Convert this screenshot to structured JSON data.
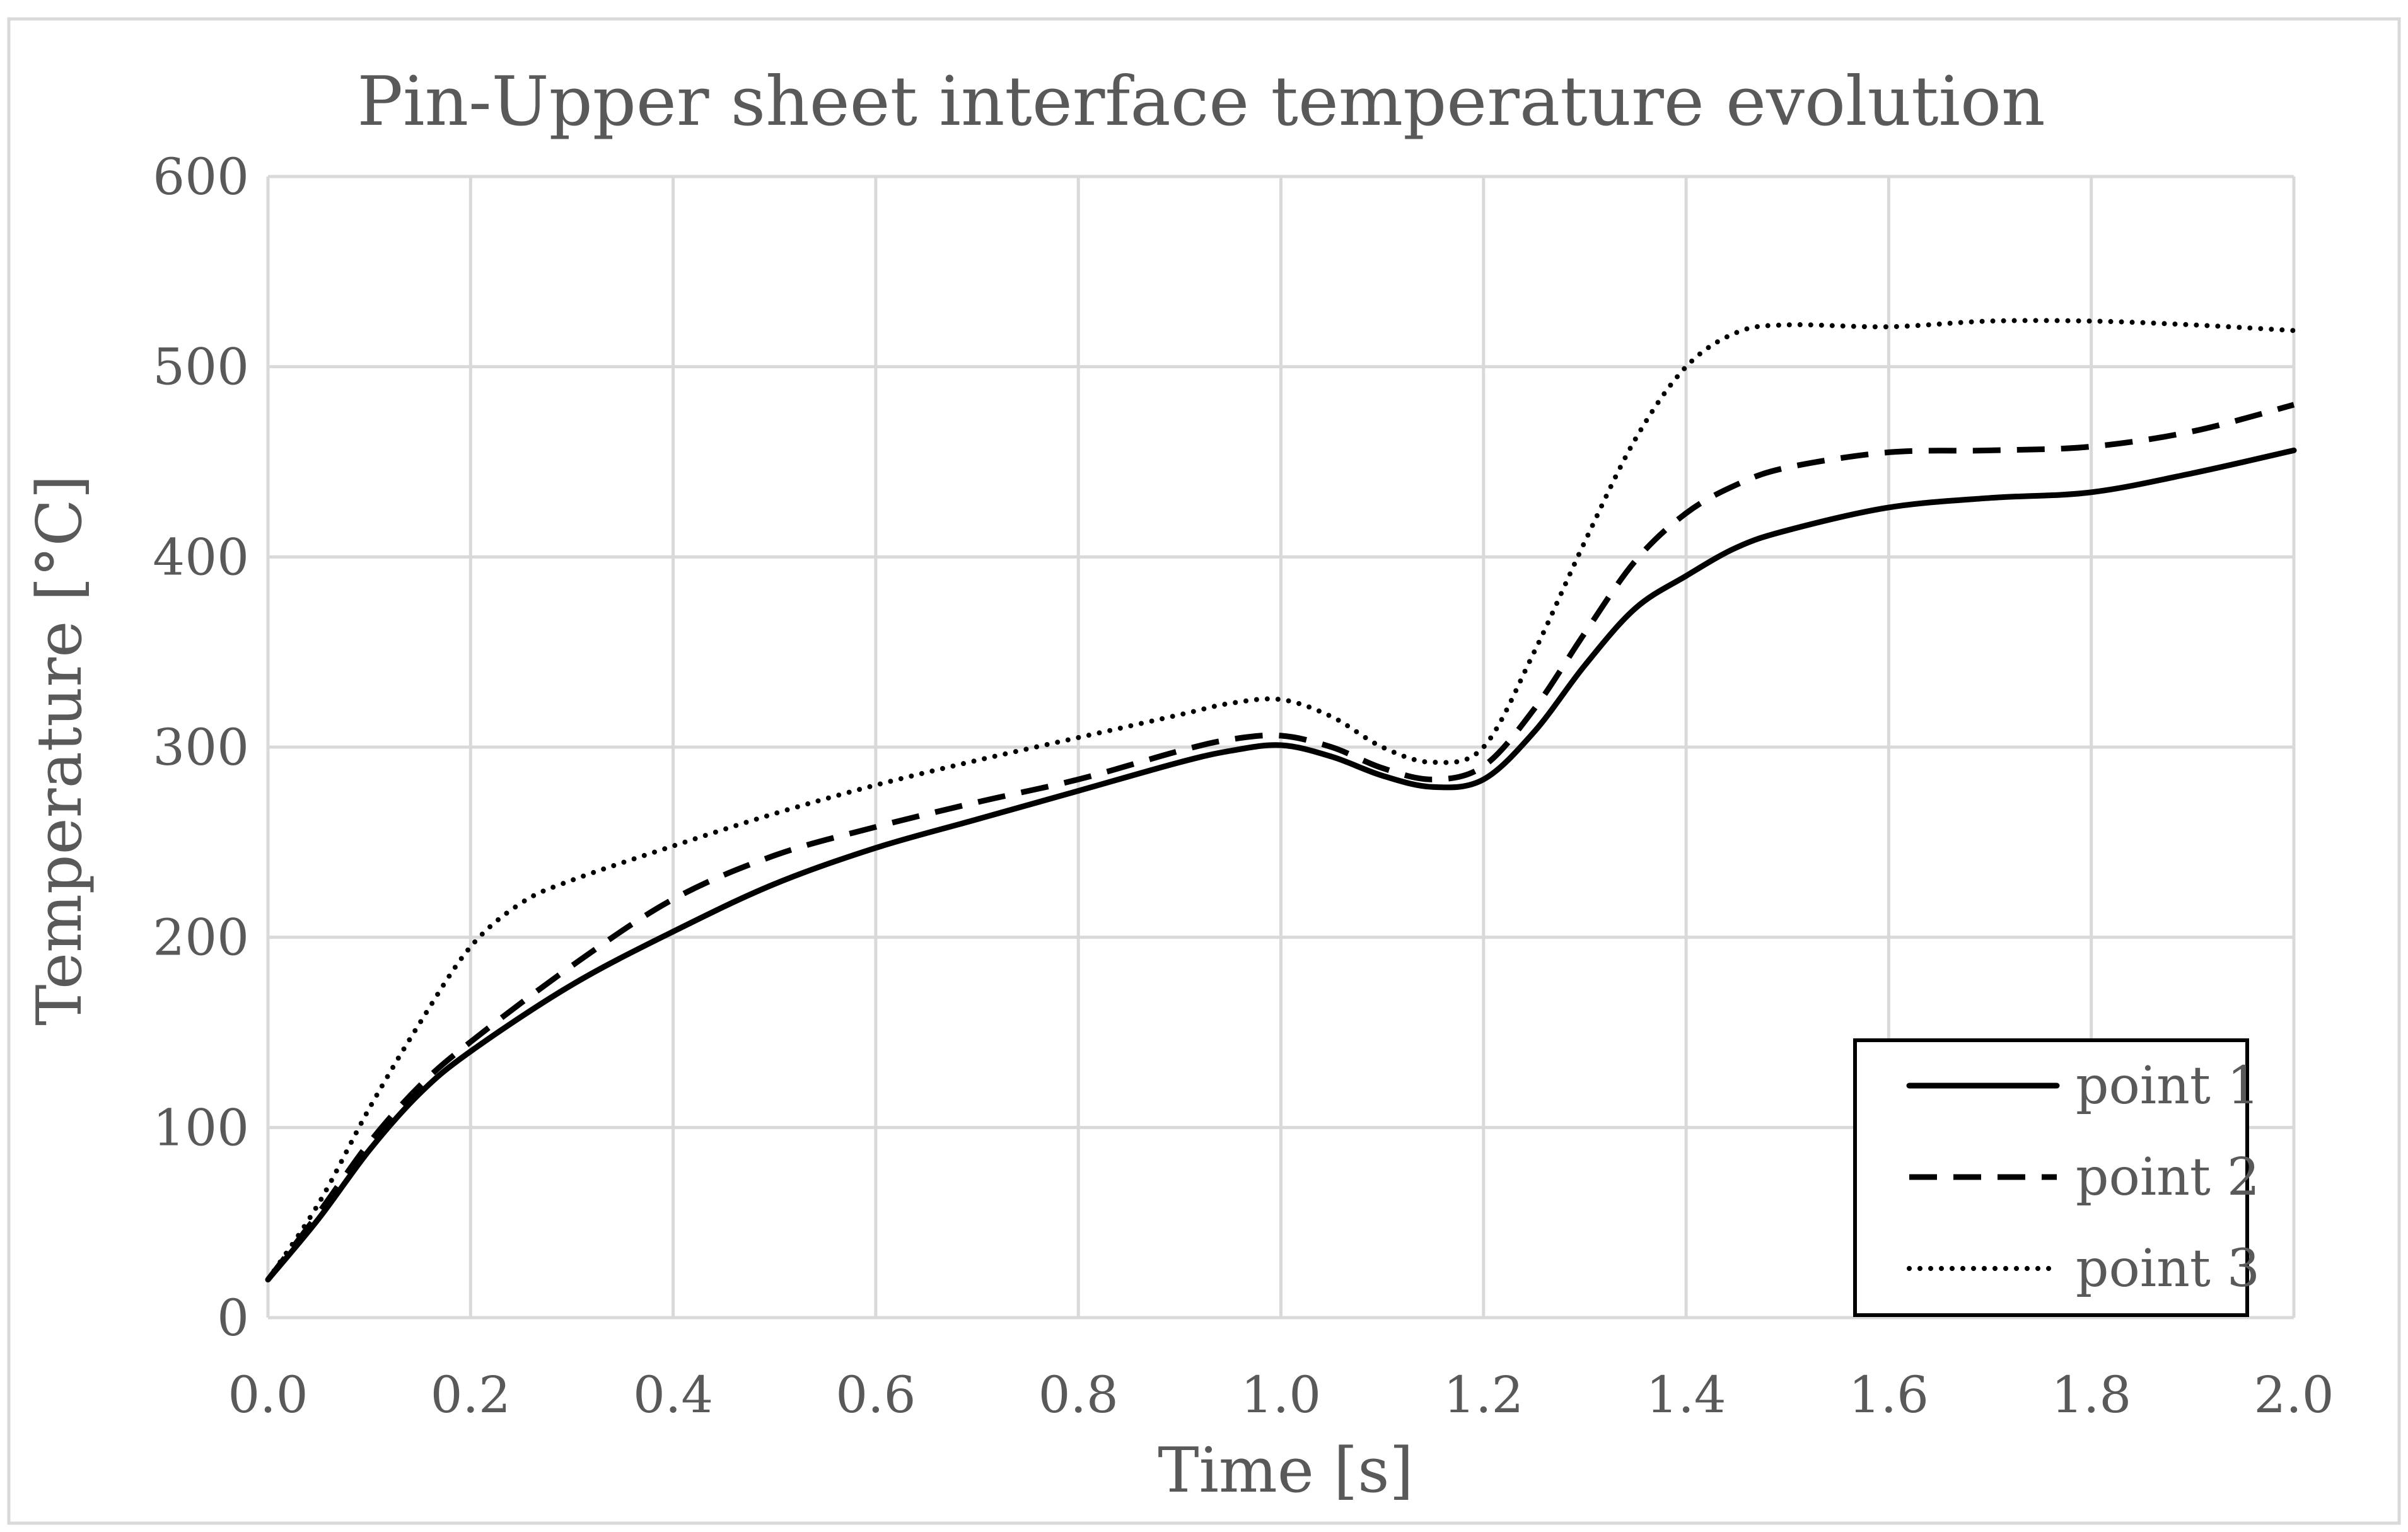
{
  "chart_data": {
    "type": "line",
    "title": "Pin-Upper sheet interface temperature evolution",
    "xlabel": "Time [s]",
    "ylabel": "Temperature [°C]",
    "xlim": [
      0,
      2
    ],
    "ylim": [
      0,
      600
    ],
    "grid": true,
    "legend_position": "bottom-right",
    "x_ticks": [
      "0.0",
      "0.2",
      "0.4",
      "0.6",
      "0.8",
      "1.0",
      "1.2",
      "1.4",
      "1.6",
      "1.8",
      "2.0"
    ],
    "y_ticks": [
      "0",
      "100",
      "200",
      "300",
      "400",
      "500",
      "600"
    ],
    "series": [
      {
        "name": "point 1",
        "line_style": "solid",
        "color": "#000000",
        "x": [
          0,
          0.05,
          0.1,
          0.15,
          0.2,
          0.3,
          0.4,
          0.5,
          0.6,
          0.7,
          0.8,
          0.9,
          0.95,
          1.0,
          1.05,
          1.1,
          1.15,
          1.2,
          1.25,
          1.3,
          1.35,
          1.4,
          1.45,
          1.5,
          1.6,
          1.7,
          1.8,
          1.9,
          2.0
        ],
        "y": [
          20,
          52,
          88,
          118,
          140,
          175,
          203,
          228,
          247,
          262,
          277,
          292,
          298,
          301,
          295,
          285,
          279,
          283,
          308,
          343,
          373,
          390,
          405,
          414,
          426,
          431,
          434,
          444,
          456
        ]
      },
      {
        "name": "point 2",
        "line_style": "dashed",
        "color": "#000000",
        "x": [
          0,
          0.05,
          0.1,
          0.15,
          0.2,
          0.3,
          0.4,
          0.5,
          0.6,
          0.7,
          0.8,
          0.9,
          0.95,
          1.0,
          1.05,
          1.1,
          1.15,
          1.2,
          1.25,
          1.3,
          1.35,
          1.4,
          1.45,
          1.5,
          1.6,
          1.7,
          1.8,
          1.9,
          2.0
        ],
        "y": [
          20,
          55,
          92,
          122,
          145,
          185,
          220,
          243,
          258,
          271,
          283,
          298,
          304,
          306,
          300,
          289,
          283,
          290,
          320,
          360,
          398,
          423,
          438,
          447,
          455,
          456,
          458,
          466,
          480
        ]
      },
      {
        "name": "point 3",
        "line_style": "dotted",
        "color": "#000000",
        "x": [
          0,
          0.05,
          0.1,
          0.15,
          0.2,
          0.25,
          0.3,
          0.4,
          0.5,
          0.6,
          0.7,
          0.8,
          0.9,
          0.95,
          1.0,
          1.05,
          1.1,
          1.15,
          1.2,
          1.25,
          1.3,
          1.35,
          1.4,
          1.45,
          1.5,
          1.6,
          1.7,
          1.8,
          1.9,
          2.0
        ],
        "y": [
          20,
          60,
          110,
          155,
          195,
          218,
          230,
          248,
          265,
          280,
          293,
          305,
          317,
          323,
          325,
          316,
          300,
          292,
          300,
          350,
          408,
          462,
          500,
          518,
          522,
          521,
          524,
          524,
          522,
          519
        ]
      }
    ]
  }
}
